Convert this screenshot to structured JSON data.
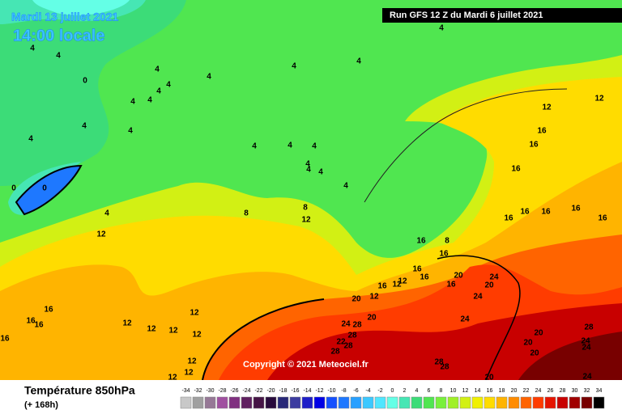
{
  "header": {
    "date": "Mardi 13 juillet 2021",
    "time": "14:00 locale",
    "run": "Run GFS 12 Z du Mardi 6 juillet 2021"
  },
  "map": {
    "copyright": "Copyright © 2021 Meteociel.fr",
    "labels": [
      "4",
      "4",
      "4",
      "0",
      "4",
      "4",
      "4",
      "4",
      "4",
      "4",
      "4",
      "4",
      "4",
      "4",
      "4",
      "4",
      "4",
      "4",
      "4",
      "4",
      "4",
      "4",
      "0",
      "0",
      "4",
      "8",
      "8",
      "12",
      "12",
      "12",
      "12",
      "16",
      "16",
      "16",
      "16",
      "16",
      "16",
      "16",
      "16",
      "16",
      "8",
      "16",
      "16",
      "16",
      "12",
      "16",
      "12",
      "20",
      "16",
      "24",
      "20",
      "24",
      "12",
      "20",
      "16",
      "16",
      "16",
      "12",
      "12",
      "12",
      "12",
      "12",
      "16",
      "20",
      "24",
      "28",
      "28",
      "22",
      "28",
      "28",
      "24",
      "20",
      "28",
      "24",
      "24",
      "20",
      "20",
      "28",
      "28",
      "12",
      "12",
      "12",
      "20",
      "24"
    ]
  },
  "footer": {
    "title": "Température 850hPa",
    "subtitle": "(+ 168h)"
  },
  "legend": {
    "steps": [
      {
        "label": "-34",
        "color": "#c8c8c8"
      },
      {
        "label": "-32",
        "color": "#a0a0a0"
      },
      {
        "label": "-30",
        "color": "#967896"
      },
      {
        "label": "-28",
        "color": "#a050a0"
      },
      {
        "label": "-26",
        "color": "#803080"
      },
      {
        "label": "-24",
        "color": "#602060"
      },
      {
        "label": "-22",
        "color": "#461446"
      },
      {
        "label": "-20",
        "color": "#280a3c"
      },
      {
        "label": "-18",
        "color": "#282878"
      },
      {
        "label": "-16",
        "color": "#3c3ca0"
      },
      {
        "label": "-14",
        "color": "#1e1ec8"
      },
      {
        "label": "-12",
        "color": "#0000e6"
      },
      {
        "label": "-10",
        "color": "#1450ff"
      },
      {
        "label": "-8",
        "color": "#1e78ff"
      },
      {
        "label": "-6",
        "color": "#28a0ff"
      },
      {
        "label": "-4",
        "color": "#3cc8ff"
      },
      {
        "label": "-2",
        "color": "#50e6ff"
      },
      {
        "label": "0",
        "color": "#64ffe6"
      },
      {
        "label": "2",
        "color": "#46e6b4"
      },
      {
        "label": "4",
        "color": "#3cdc78"
      },
      {
        "label": "6",
        "color": "#50e650"
      },
      {
        "label": "8",
        "color": "#78f03c"
      },
      {
        "label": "10",
        "color": "#a0f028"
      },
      {
        "label": "12",
        "color": "#d2f014"
      },
      {
        "label": "14",
        "color": "#f0f000"
      },
      {
        "label": "16",
        "color": "#ffdc00"
      },
      {
        "label": "18",
        "color": "#ffb400"
      },
      {
        "label": "20",
        "color": "#ff8c00"
      },
      {
        "label": "22",
        "color": "#ff6400"
      },
      {
        "label": "24",
        "color": "#ff3c00"
      },
      {
        "label": "26",
        "color": "#e61400"
      },
      {
        "label": "28",
        "color": "#c80000"
      },
      {
        "label": "30",
        "color": "#a00000"
      },
      {
        "label": "32",
        "color": "#780000"
      },
      {
        "label": "34",
        "color": "#000000"
      }
    ]
  }
}
